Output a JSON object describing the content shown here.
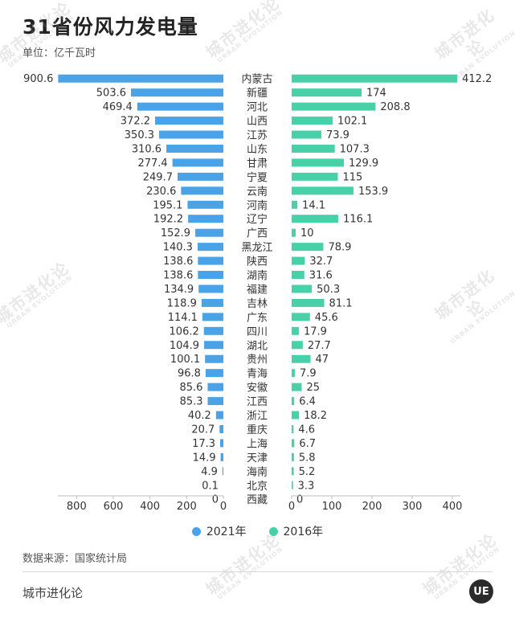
{
  "title": "31省份风力发电量",
  "unit_label": "单位：亿千瓦时",
  "source": "数据来源：国家统计局",
  "brand": "城市进化论",
  "logo_text": "UE",
  "watermark": {
    "cn": "城市进化论",
    "en": "URBAN EVOLUTION"
  },
  "colors": {
    "left_series": "#4aa3e6",
    "right_series": "#48d1a8"
  },
  "chart_data": {
    "type": "bar",
    "orientation": "horizontal-butterfly",
    "categories": [
      "内蒙古",
      "新疆",
      "河北",
      "山西",
      "江苏",
      "山东",
      "甘肃",
      "宁夏",
      "云南",
      "河南",
      "辽宁",
      "广西",
      "黑龙江",
      "陕西",
      "湖南",
      "福建",
      "吉林",
      "广东",
      "四川",
      "湖北",
      "贵州",
      "青海",
      "安徽",
      "江西",
      "浙江",
      "重庆",
      "上海",
      "天津",
      "海南",
      "北京",
      "西藏"
    ],
    "series": [
      {
        "name": "2021年",
        "side": "left",
        "color": "#4aa3e6",
        "values": [
          900.6,
          503.6,
          469.4,
          372.2,
          350.3,
          310.6,
          277.4,
          249.7,
          230.6,
          195.1,
          192.2,
          152.9,
          140.3,
          138.6,
          138.6,
          134.9,
          118.9,
          114.1,
          106.2,
          104.9,
          100.1,
          96.8,
          85.6,
          85.3,
          40.2,
          20.7,
          17.3,
          14.9,
          4.9,
          0.1,
          0
        ]
      },
      {
        "name": "2016年",
        "side": "right",
        "color": "#48d1a8",
        "values": [
          412.2,
          174,
          208.8,
          102.1,
          73.9,
          107.3,
          129.9,
          115,
          153.9,
          14.1,
          116.1,
          10,
          78.9,
          32.7,
          31.6,
          50.3,
          81.1,
          45.6,
          17.9,
          27.7,
          47,
          7.9,
          25,
          6.4,
          18.2,
          4.6,
          6.7,
          5.8,
          5.2,
          3.3,
          0
        ]
      }
    ],
    "left_axis": {
      "range": [
        0,
        900
      ],
      "ticks": [
        "800",
        "600",
        "400",
        "200",
        "0"
      ],
      "tick_values": [
        800,
        600,
        400,
        200,
        0
      ]
    },
    "right_axis": {
      "range": [
        0,
        400
      ],
      "ticks": [
        "0",
        "100",
        "200",
        "300",
        "400"
      ],
      "tick_values": [
        0,
        100,
        200,
        300,
        400
      ]
    },
    "legend": {
      "placement": "bottom-center",
      "items": [
        "2021年",
        "2016年"
      ]
    },
    "grid": false
  }
}
